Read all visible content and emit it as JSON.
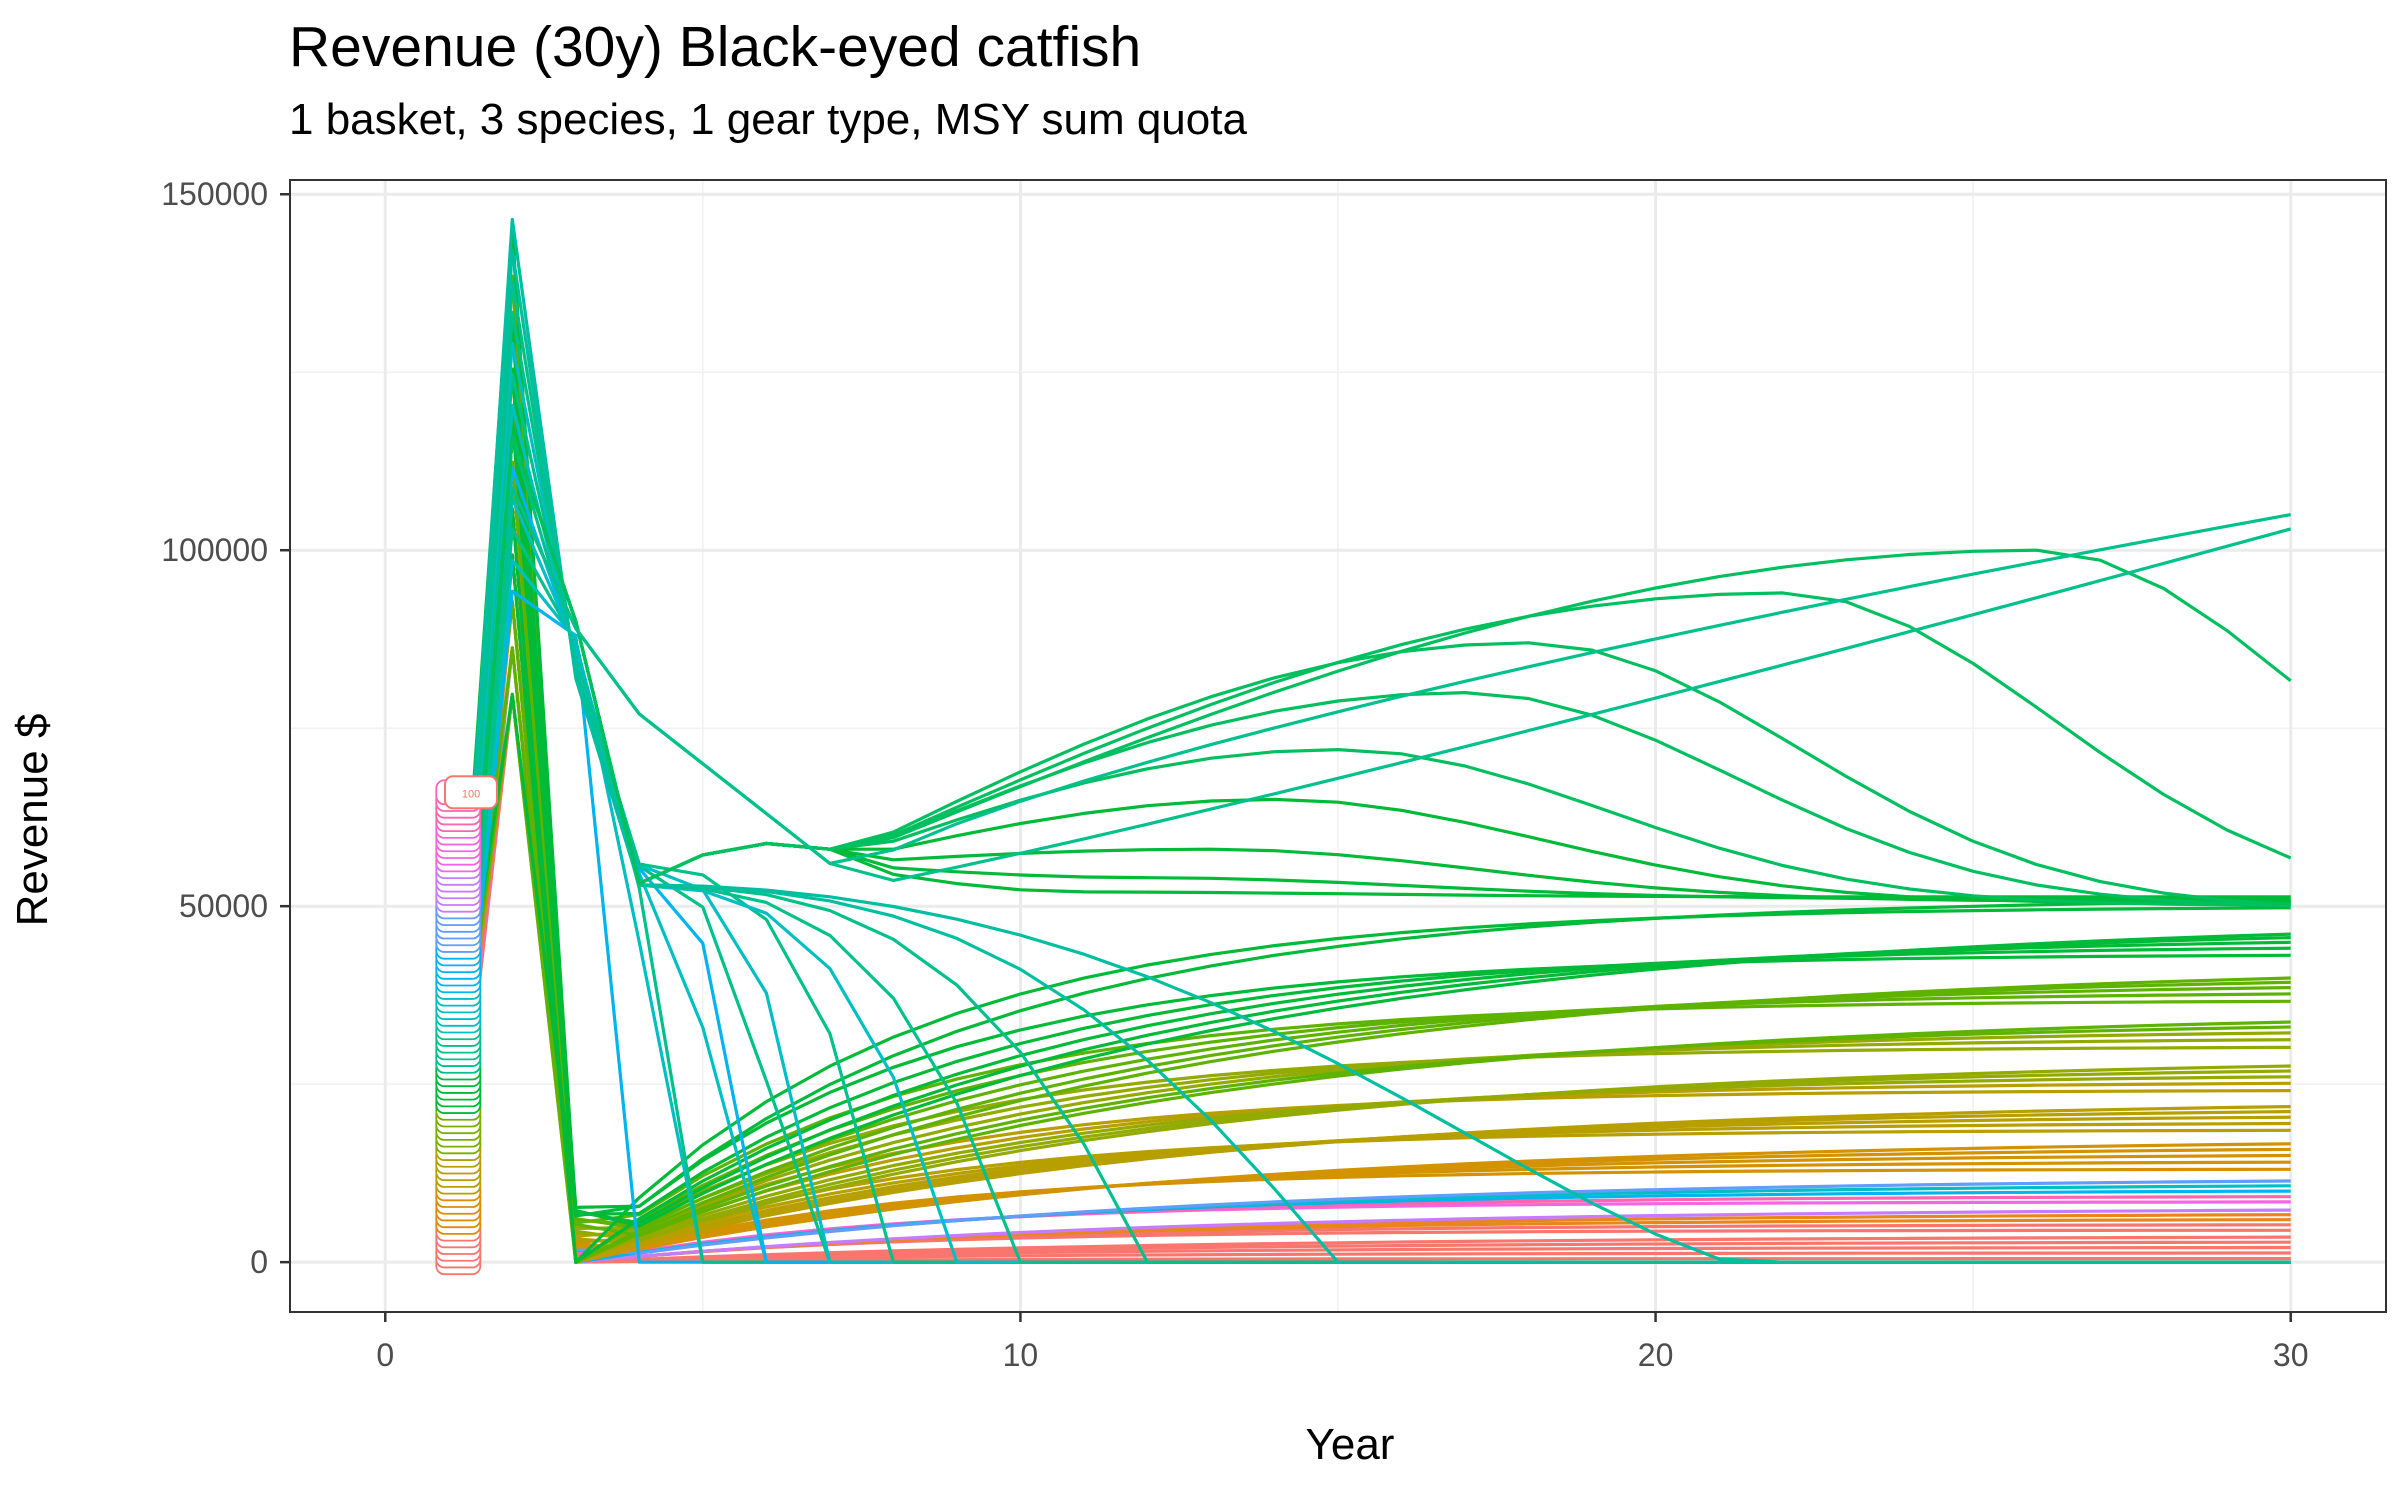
{
  "chart_data": {
    "type": "line",
    "title": "Revenue (30y) Black-eyed catfish",
    "subtitle": "1 basket, 3 species, 1 gear type, MSY sum quota",
    "xlabel": "Year",
    "ylabel": "Revenue $",
    "xlim": [
      -1.5,
      31.5
    ],
    "ylim": [
      -7000,
      152000
    ],
    "x_ticks": [
      0,
      10,
      20,
      30
    ],
    "y_ticks": [
      0,
      50000,
      100000,
      150000
    ],
    "x_tick_labels": [
      "0",
      "10",
      "20",
      "30"
    ],
    "y_tick_labels": [
      "0",
      "50000",
      "100000",
      "150000"
    ],
    "grid": true,
    "legend": "none",
    "annotation": "100",
    "colors": [
      "#f8766d",
      "#de8c00",
      "#b79f00",
      "#7cae00",
      "#00ba38",
      "#00c08b",
      "#00bfc4",
      "#00b4f0",
      "#619cff",
      "#c77cff",
      "#f564e3",
      "#ff64b0"
    ],
    "families": {
      "flat_levels": [
        500,
        1300,
        2100,
        2900,
        3700,
        4500,
        5300,
        6100,
        6900,
        7700,
        8500,
        9300,
        10200,
        11100,
        12000,
        13100,
        14200,
        15300,
        16400,
        17500,
        18600,
        19700,
        20800,
        21900,
        23000,
        24200,
        25400,
        26600,
        27800,
        29000,
        30300,
        31600,
        32900,
        34200,
        35500,
        36800,
        38100,
        39400,
        40700,
        42000,
        43300,
        44600,
        45900,
        47200,
        48500,
        50000,
        51300
      ],
      "crash_years": [
        4,
        4.5,
        5,
        5.5,
        6,
        6.5,
        7,
        8,
        9,
        10,
        12,
        15,
        24
      ],
      "hump_peaks": [
        [
          11,
          52000
        ],
        [
          12,
          54000
        ],
        [
          13,
          58000
        ],
        [
          14,
          65000
        ],
        [
          15,
          72000
        ],
        [
          17,
          80000
        ],
        [
          18,
          87000
        ],
        [
          22,
          94000
        ],
        [
          26,
          100000
        ]
      ],
      "rising_end": [
        105000,
        103000
      ],
      "peak_year": 2,
      "peak_revenue": 145000,
      "year1_revenue_range": [
        0,
        66000
      ]
    }
  }
}
